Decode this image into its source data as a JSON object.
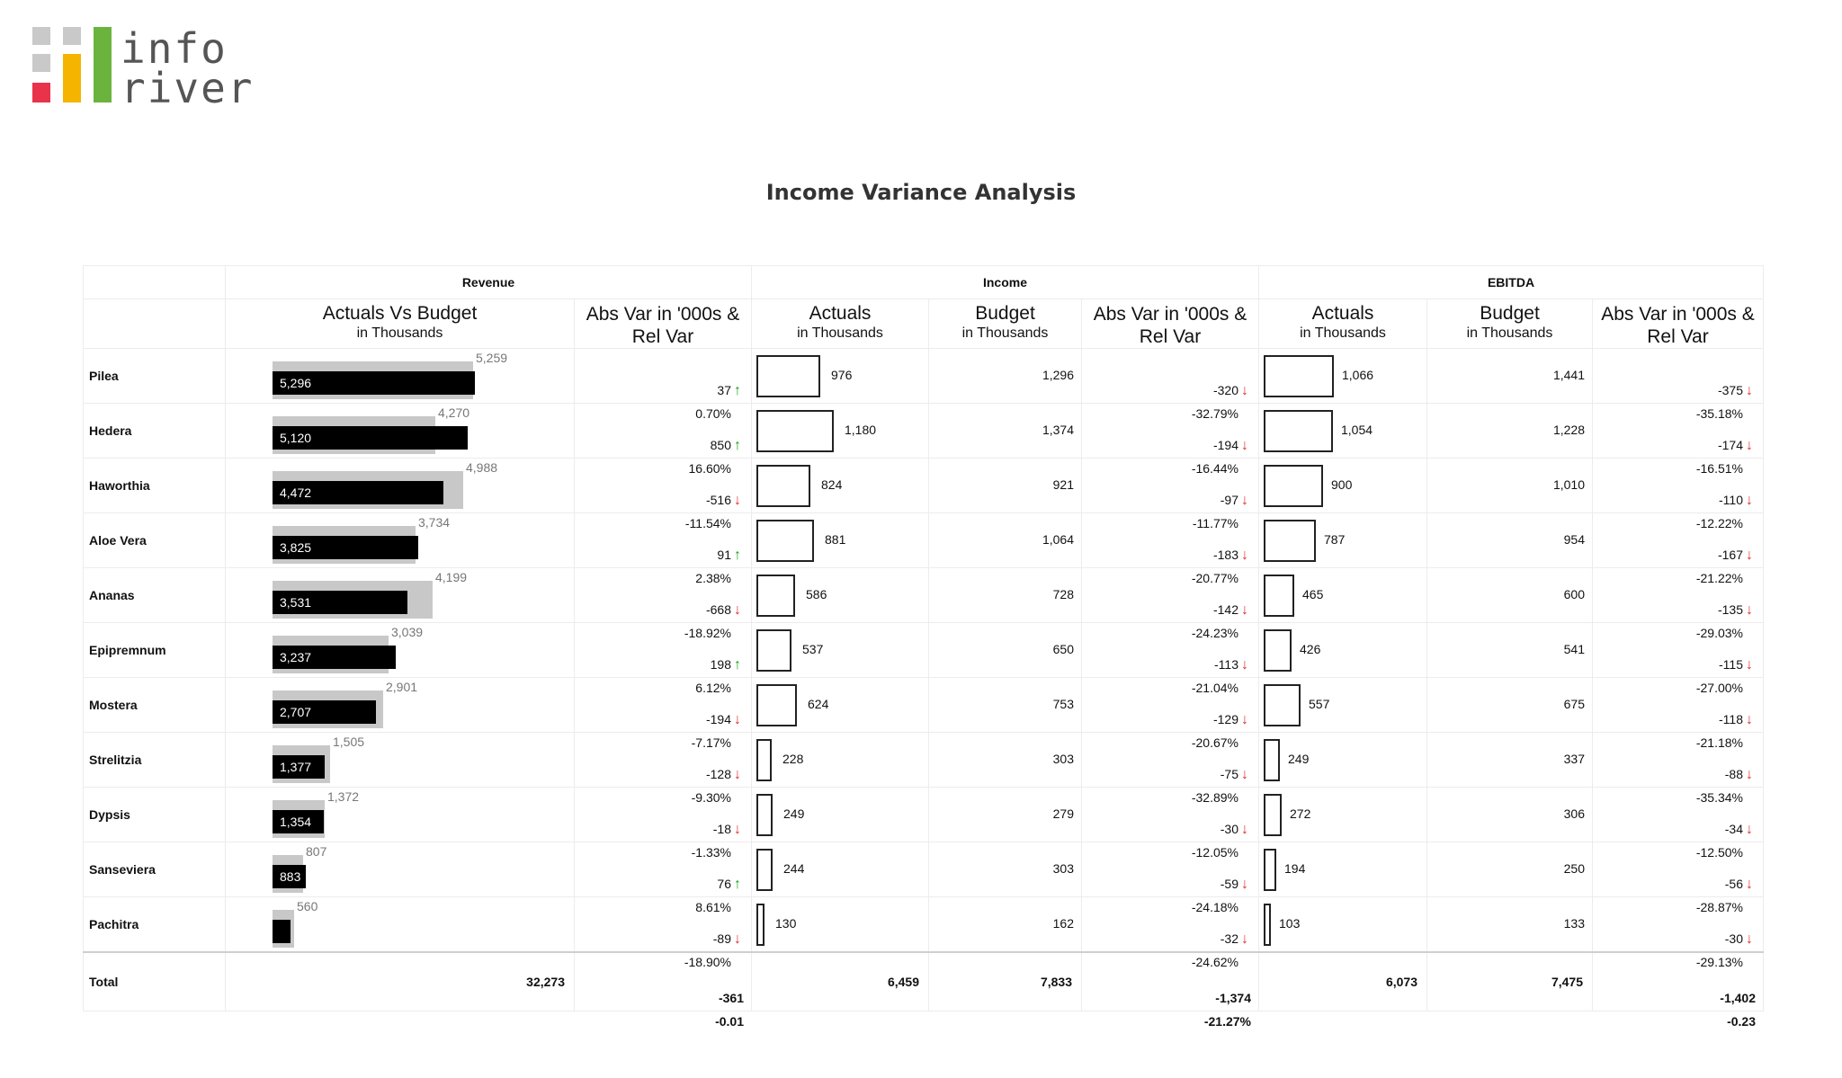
{
  "logo": {
    "line1": "info",
    "line2": "river"
  },
  "title": "Income Variance Analysis",
  "groups": [
    "Revenue",
    "Income",
    "EBITDA"
  ],
  "headers": {
    "avb": {
      "main": "Actuals Vs Budget",
      "sub": "in Thousands"
    },
    "var": {
      "line1": "Abs Var in '000s &",
      "line2": "Rel Var"
    },
    "actuals": {
      "main": "Actuals",
      "sub": "in Thousands"
    },
    "budget": {
      "main": "Budget",
      "sub": "in Thousands"
    }
  },
  "rows": [
    {
      "name": "Pilea",
      "rev": {
        "actual": "5,296",
        "actual_value": 5296,
        "budget": "5,259",
        "budget_value": 5259,
        "abs": "37",
        "rel": "0.70%",
        "dir": "up"
      },
      "inc": {
        "actual": "976",
        "actual_value": 976,
        "budget": "1,296",
        "abs": "-320",
        "rel": "-32.79%",
        "dir": "down"
      },
      "ebitda": {
        "actual": "1,066",
        "actual_value": 1066,
        "budget": "1,441",
        "abs": "-375",
        "rel": "-35.18%",
        "dir": "down"
      }
    },
    {
      "name": "Hedera",
      "rev": {
        "actual": "5,120",
        "actual_value": 5120,
        "budget": "4,270",
        "budget_value": 4270,
        "abs": "850",
        "rel": "16.60%",
        "dir": "up"
      },
      "inc": {
        "actual": "1,180",
        "actual_value": 1180,
        "budget": "1,374",
        "abs": "-194",
        "rel": "-16.44%",
        "dir": "down"
      },
      "ebitda": {
        "actual": "1,054",
        "actual_value": 1054,
        "budget": "1,228",
        "abs": "-174",
        "rel": "-16.51%",
        "dir": "down"
      }
    },
    {
      "name": "Haworthia",
      "rev": {
        "actual": "4,472",
        "actual_value": 4472,
        "budget": "4,988",
        "budget_value": 4988,
        "abs": "-516",
        "rel": "-11.54%",
        "dir": "down"
      },
      "inc": {
        "actual": "824",
        "actual_value": 824,
        "budget": "921",
        "abs": "-97",
        "rel": "-11.77%",
        "dir": "down"
      },
      "ebitda": {
        "actual": "900",
        "actual_value": 900,
        "budget": "1,010",
        "abs": "-110",
        "rel": "-12.22%",
        "dir": "down"
      }
    },
    {
      "name": "Aloe Vera",
      "rev": {
        "actual": "3,825",
        "actual_value": 3825,
        "budget": "3,734",
        "budget_value": 3734,
        "abs": "91",
        "rel": "2.38%",
        "dir": "up"
      },
      "inc": {
        "actual": "881",
        "actual_value": 881,
        "budget": "1,064",
        "abs": "-183",
        "rel": "-20.77%",
        "dir": "down"
      },
      "ebitda": {
        "actual": "787",
        "actual_value": 787,
        "budget": "954",
        "abs": "-167",
        "rel": "-21.22%",
        "dir": "down"
      }
    },
    {
      "name": "Ananas",
      "rev": {
        "actual": "3,531",
        "actual_value": 3531,
        "budget": "4,199",
        "budget_value": 4199,
        "abs": "-668",
        "rel": "-18.92%",
        "dir": "down"
      },
      "inc": {
        "actual": "586",
        "actual_value": 586,
        "budget": "728",
        "abs": "-142",
        "rel": "-24.23%",
        "dir": "down"
      },
      "ebitda": {
        "actual": "465",
        "actual_value": 465,
        "budget": "600",
        "abs": "-135",
        "rel": "-29.03%",
        "dir": "down"
      }
    },
    {
      "name": "Epipremnum",
      "rev": {
        "actual": "3,237",
        "actual_value": 3237,
        "budget": "3,039",
        "budget_value": 3039,
        "abs": "198",
        "rel": "6.12%",
        "dir": "up"
      },
      "inc": {
        "actual": "537",
        "actual_value": 537,
        "budget": "650",
        "abs": "-113",
        "rel": "-21.04%",
        "dir": "down"
      },
      "ebitda": {
        "actual": "426",
        "actual_value": 426,
        "budget": "541",
        "abs": "-115",
        "rel": "-27.00%",
        "dir": "down"
      }
    },
    {
      "name": "Mostera",
      "rev": {
        "actual": "2,707",
        "actual_value": 2707,
        "budget": "2,901",
        "budget_value": 2901,
        "abs": "-194",
        "rel": "-7.17%",
        "dir": "down"
      },
      "inc": {
        "actual": "624",
        "actual_value": 624,
        "budget": "753",
        "abs": "-129",
        "rel": "-20.67%",
        "dir": "down"
      },
      "ebitda": {
        "actual": "557",
        "actual_value": 557,
        "budget": "675",
        "abs": "-118",
        "rel": "-21.18%",
        "dir": "down"
      }
    },
    {
      "name": "Strelitzia",
      "rev": {
        "actual": "1,377",
        "actual_value": 1377,
        "budget": "1,505",
        "budget_value": 1505,
        "abs": "-128",
        "rel": "-9.30%",
        "dir": "down"
      },
      "inc": {
        "actual": "228",
        "actual_value": 228,
        "budget": "303",
        "abs": "-75",
        "rel": "-32.89%",
        "dir": "down"
      },
      "ebitda": {
        "actual": "249",
        "actual_value": 249,
        "budget": "337",
        "abs": "-88",
        "rel": "-35.34%",
        "dir": "down"
      }
    },
    {
      "name": "Dypsis",
      "rev": {
        "actual": "1,354",
        "actual_value": 1354,
        "budget": "1,372",
        "budget_value": 1372,
        "abs": "-18",
        "rel": "-1.33%",
        "dir": "down"
      },
      "inc": {
        "actual": "249",
        "actual_value": 249,
        "budget": "279",
        "abs": "-30",
        "rel": "-12.05%",
        "dir": "down"
      },
      "ebitda": {
        "actual": "272",
        "actual_value": 272,
        "budget": "306",
        "abs": "-34",
        "rel": "-12.50%",
        "dir": "down"
      }
    },
    {
      "name": "Sanseviera",
      "rev": {
        "actual": "883",
        "actual_value": 883,
        "budget": "807",
        "budget_value": 807,
        "abs": "76",
        "rel": "8.61%",
        "dir": "up"
      },
      "inc": {
        "actual": "244",
        "actual_value": 244,
        "budget": "303",
        "abs": "-59",
        "rel": "-24.18%",
        "dir": "down"
      },
      "ebitda": {
        "actual": "194",
        "actual_value": 194,
        "budget": "250",
        "abs": "-56",
        "rel": "-28.87%",
        "dir": "down"
      }
    },
    {
      "name": "Pachitra",
      "rev": {
        "actual": "",
        "actual_value": 471,
        "budget": "560",
        "budget_value": 560,
        "abs": "-89",
        "rel": "-18.90%",
        "dir": "down"
      },
      "inc": {
        "actual": "130",
        "actual_value": 130,
        "budget": "162",
        "abs": "-32",
        "rel": "-24.62%",
        "dir": "down"
      },
      "ebitda": {
        "actual": "103",
        "actual_value": 103,
        "budget": "133",
        "abs": "-30",
        "rel": "-29.13%",
        "dir": "down"
      }
    }
  ],
  "total": {
    "label": "Total",
    "rev": {
      "actual": "32,273",
      "abs": "-361",
      "rel": "-0.01"
    },
    "inc": {
      "actual": "6,459",
      "budget": "7,833",
      "abs": "-1,374",
      "rel": "-21.27%"
    },
    "ebitda": {
      "actual": "6,073",
      "budget": "7,475",
      "abs": "-1,402",
      "rel": "-0.23"
    }
  },
  "icons": {
    "up": "arrow-up-icon",
    "down": "arrow-down-icon"
  },
  "colors": {
    "up": "#1aa01a",
    "down": "#e03030",
    "actual_bar": "#000000",
    "budget_bar": "#c8c8c8"
  }
}
